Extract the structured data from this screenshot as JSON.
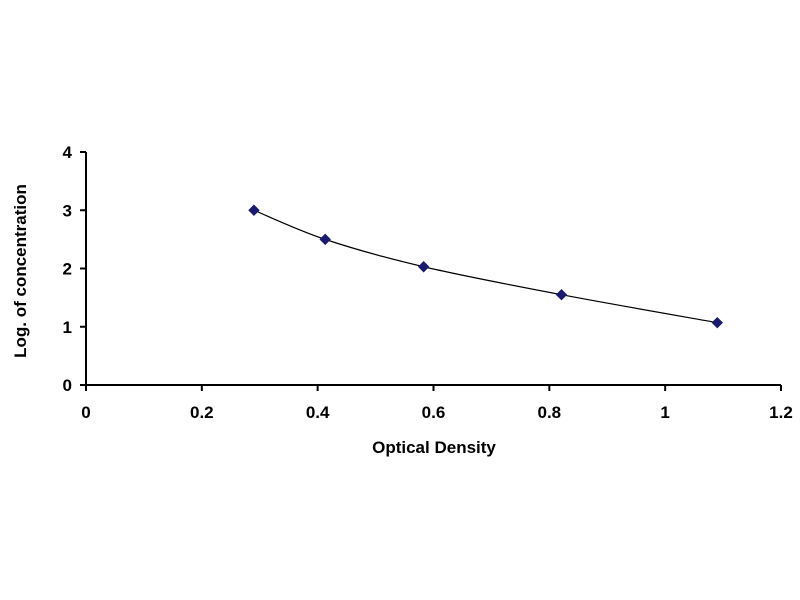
{
  "chart_data": {
    "type": "scatter",
    "title": "",
    "xlabel": "Optical Density",
    "ylabel": "Log. of concentration",
    "xlim": [
      0,
      1.2
    ],
    "ylim": [
      0,
      4
    ],
    "x_ticks": [
      "0",
      "0.2",
      "0.4",
      "0.6",
      "0.8",
      "1",
      "1.2"
    ],
    "y_ticks": [
      "0",
      "1",
      "2",
      "3",
      "4"
    ],
    "grid": false,
    "legend": "none",
    "series": [
      {
        "x": [
          0.29,
          0.413,
          0.583,
          0.821,
          1.09
        ],
        "y": [
          3.0,
          2.5,
          2.03,
          1.55,
          1.07
        ],
        "marker": "diamond",
        "line": "smooth",
        "color": "#1a1a6e"
      }
    ]
  }
}
